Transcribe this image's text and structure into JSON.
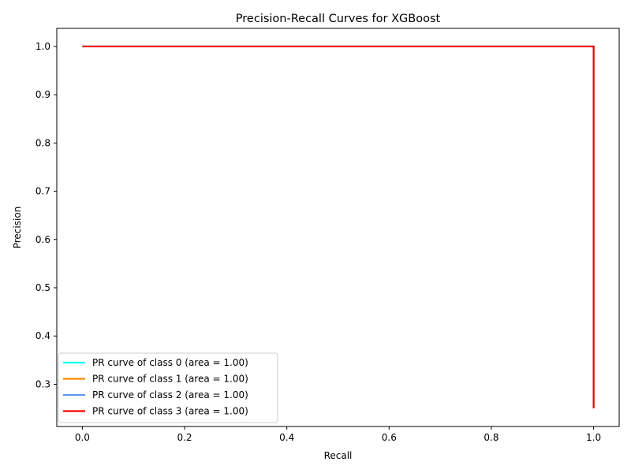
{
  "chart_data": {
    "type": "line",
    "title": "Precision-Recall Curves for XGBoost",
    "xlabel": "Recall",
    "ylabel": "Precision",
    "xlim": [
      -0.05,
      1.05
    ],
    "ylim": [
      0.2125,
      1.0375
    ],
    "xticks": [
      "0.0",
      "0.2",
      "0.4",
      "0.6",
      "0.8",
      "1.0"
    ],
    "yticks": [
      "0.3",
      "0.4",
      "0.5",
      "0.6",
      "0.7",
      "0.8",
      "0.9",
      "1.0"
    ],
    "grid": false,
    "legend_position": "lower-left",
    "series": [
      {
        "name": "PR curve of class 0 (area = 1.00)",
        "color": "#00ffff",
        "x": [
          0.0,
          1.0,
          1.0
        ],
        "y": [
          1.0,
          1.0,
          0.25
        ]
      },
      {
        "name": "PR curve of class 1 (area = 1.00)",
        "color": "#ff8c00",
        "x": [
          0.0,
          1.0,
          1.0
        ],
        "y": [
          1.0,
          1.0,
          0.25
        ]
      },
      {
        "name": "PR curve of class 2 (area = 1.00)",
        "color": "#6495ed",
        "x": [
          0.0,
          1.0,
          1.0
        ],
        "y": [
          1.0,
          1.0,
          0.25
        ]
      },
      {
        "name": "PR curve of class 3 (area = 1.00)",
        "color": "#ff0000",
        "x": [
          0.0,
          1.0,
          1.0
        ],
        "y": [
          1.0,
          1.0,
          0.25
        ]
      }
    ]
  }
}
